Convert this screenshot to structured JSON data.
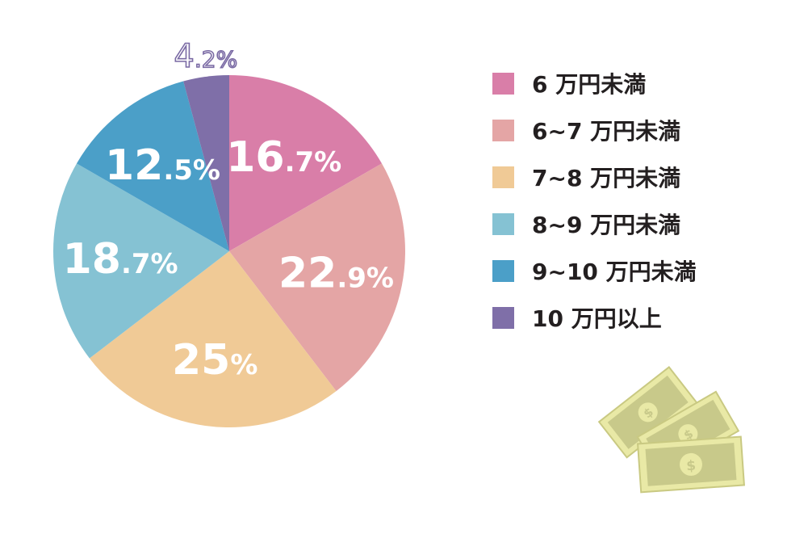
{
  "chart_data": {
    "type": "pie",
    "title": "",
    "unit": "%",
    "categories": [
      "6 万円未満",
      "6~7 万円未満",
      "7~8 万円未満",
      "8~9 万円未満",
      "9~10 万円未満",
      "10 万円以上"
    ],
    "values": [
      16.7,
      22.9,
      25,
      18.7,
      12.5,
      4.2
    ],
    "value_labels": [
      {
        "big": "16",
        "small": ".7%"
      },
      {
        "big": "22",
        "small": ".9%"
      },
      {
        "big": "25",
        "small": "%"
      },
      {
        "big": "18",
        "small": ".7%"
      },
      {
        "big": "12",
        "small": ".5%"
      },
      {
        "big": "4",
        "small": ".2%"
      }
    ],
    "colors": [
      "#d97ea8",
      "#e4a5a5",
      "#f0ca96",
      "#85c2d3",
      "#4b9fc8",
      "#7f6fa8"
    ],
    "start": "top (12 o'clock)",
    "direction": "clockwise",
    "legend_position": "right"
  },
  "legend": {
    "items": [
      {
        "label": "6 万円未満",
        "color": "#d97ea8"
      },
      {
        "label": "6~7 万円未満",
        "color": "#e4a5a5"
      },
      {
        "label": "7~8 万円未満",
        "color": "#f0ca96"
      },
      {
        "label": "8~9 万円未満",
        "color": "#85c2d3"
      },
      {
        "label": "9~10 万円未満",
        "color": "#4b9fc8"
      },
      {
        "label": "10 万円以上",
        "color": "#7f6fa8"
      }
    ]
  },
  "decoration": {
    "icon": "money-bills-icon",
    "symbol": "$"
  }
}
